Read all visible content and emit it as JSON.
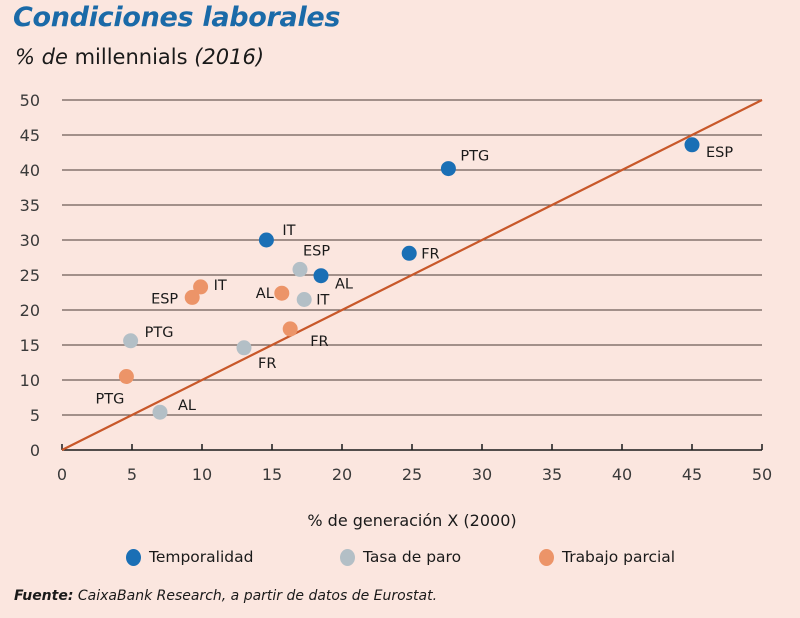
{
  "header": {
    "title": "Condiciones laborales",
    "subtitle_prefix": "% de",
    "subtitle_main": " millennials ",
    "subtitle_suffix": "(2016)"
  },
  "source": {
    "label": "Fuente:",
    "text": " CaixaBank Research, a partir de datos de Eurostat."
  },
  "colors": {
    "background": "#fbe6df",
    "temporalidad": "#1a6fb5",
    "tasa_de_paro": "#b3bfc6",
    "trabajo_parcial": "#ec9468",
    "reference_line": "#c8582a",
    "gridline": "#6e5c57",
    "title": "#1a6aa8"
  },
  "chart_data": {
    "type": "scatter",
    "title": "Condiciones laborales",
    "subtitle": "% de millennials (2016)",
    "xlabel": "% de generación X (2000)",
    "ylabel": "% de millennials (2016)",
    "xlim": [
      0,
      50
    ],
    "ylim": [
      0,
      50
    ],
    "xticks": [
      "0",
      "5",
      "10",
      "15",
      "20",
      "25",
      "30",
      "35",
      "40",
      "45",
      "50"
    ],
    "yticks": [
      "0",
      "5",
      "10",
      "15",
      "20",
      "25",
      "30",
      "35",
      "40",
      "45",
      "50"
    ],
    "grid": "horizontal",
    "legend_position": "bottom",
    "reference_line": {
      "type": "y=x",
      "from": [
        0,
        0
      ],
      "to": [
        50,
        50
      ]
    },
    "series": [
      {
        "name": "Temporalidad",
        "color": "#1a6fb5",
        "points": [
          {
            "label": "ESP",
            "x": 45.0,
            "y": 43.6
          },
          {
            "label": "PTG",
            "x": 27.6,
            "y": 40.2
          },
          {
            "label": "IT",
            "x": 14.6,
            "y": 30.0
          },
          {
            "label": "FR",
            "x": 24.8,
            "y": 28.1
          },
          {
            "label": "AL",
            "x": 18.5,
            "y": 24.9
          }
        ]
      },
      {
        "name": "Tasa de paro",
        "color": "#b3bfc6",
        "points": [
          {
            "label": "ESP",
            "x": 17.0,
            "y": 25.8
          },
          {
            "label": "IT",
            "x": 17.3,
            "y": 21.5
          },
          {
            "label": "PTG",
            "x": 4.9,
            "y": 15.6
          },
          {
            "label": "FR",
            "x": 13.0,
            "y": 14.6
          },
          {
            "label": "AL",
            "x": 7.0,
            "y": 5.4
          }
        ]
      },
      {
        "name": "Trabajo parcial",
        "color": "#ec9468",
        "points": [
          {
            "label": "IT",
            "x": 9.9,
            "y": 23.3
          },
          {
            "label": "ESP",
            "x": 9.3,
            "y": 21.8
          },
          {
            "label": "AL",
            "x": 15.7,
            "y": 22.4
          },
          {
            "label": "FR",
            "x": 16.3,
            "y": 17.3
          },
          {
            "label": "PTG",
            "x": 4.6,
            "y": 10.5
          }
        ]
      }
    ]
  }
}
